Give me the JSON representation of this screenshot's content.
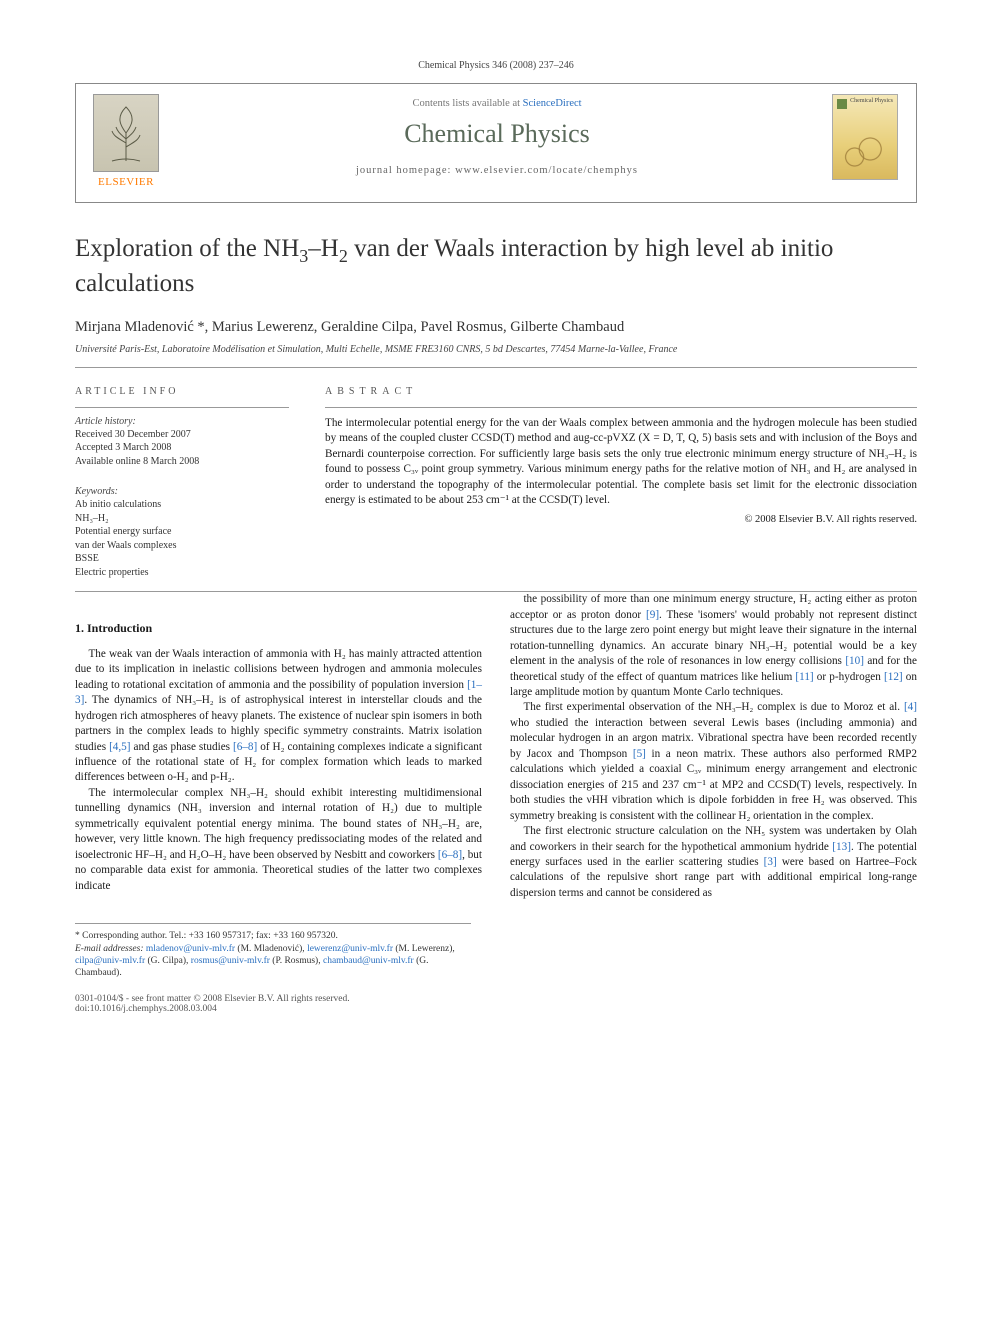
{
  "header_line": "Chemical Physics 346 (2008) 237–246",
  "masthead": {
    "contents_prefix": "Contents lists available at ",
    "contents_link": "ScienceDirect",
    "journal_title": "Chemical Physics",
    "homepage_prefix": "journal homepage: ",
    "homepage_url": "www.elsevier.com/locate/chemphys",
    "publisher": "ELSEVIER",
    "cover_label": "Chemical Physics"
  },
  "article": {
    "title_html": "Exploration of the NH<sub>3</sub>–H<sub>2</sub> van der Waals interaction by high level ab initio calculations",
    "authors": "Mirjana Mladenović *, Marius Lewerenz, Geraldine Cilpa, Pavel Rosmus, Gilberte Chambaud",
    "affiliation": "Université Paris-Est, Laboratoire Modélisation et Simulation, Multi Echelle, MSME FRE3160 CNRS, 5 bd Descartes, 77454 Marne-la-Vallee, France"
  },
  "info": {
    "head_left": "ARTICLE INFO",
    "head_right": "ABSTRACT",
    "history_label": "Article history:",
    "history": [
      "Received 30 December 2007",
      "Accepted 3 March 2008",
      "Available online 8 March 2008"
    ],
    "keywords_label": "Keywords:",
    "keywords": [
      "Ab initio calculations",
      "NH₃–H₂",
      "Potential energy surface",
      "van der Waals complexes",
      "BSSE",
      "Electric properties"
    ],
    "abstract": "The intermolecular potential energy for the van der Waals complex between ammonia and the hydrogen molecule has been studied by means of the coupled cluster CCSD(T) method and aug-cc-pVXZ (X = D, T, Q, 5) basis sets and with inclusion of the Boys and Bernardi counterpoise correction. For sufficiently large basis sets the only true electronic minimum energy structure of NH₃–H₂ is found to possess C₃ᵥ point group symmetry. Various minimum energy paths for the relative motion of NH₃ and H₂ are analysed in order to understand the topography of the intermolecular potential. The complete basis set limit for the electronic dissociation energy is estimated to be about 253 cm⁻¹ at the CCSD(T) level.",
    "copyright": "© 2008 Elsevier B.V. All rights reserved."
  },
  "section1": {
    "title": "1. Introduction",
    "p1": "The weak van der Waals interaction of ammonia with H₂ has mainly attracted attention due to its implication in inelastic collisions between hydrogen and ammonia molecules leading to rotational excitation of ammonia and the possibility of population inversion [1–3]. The dynamics of NH₃–H₂ is of astrophysical interest in interstellar clouds and the hydrogen rich atmospheres of heavy planets. The existence of nuclear spin isomers in both partners in the complex leads to highly specific symmetry constraints. Matrix isolation studies [4,5] and gas phase studies [6–8] of H₂ containing complexes indicate a significant influence of the rotational state of H₂ for complex formation which leads to marked differences between o-H₂ and p-H₂.",
    "p2": "The intermolecular complex NH₃–H₂ should exhibit interesting multidimensional tunnelling dynamics (NH₃ inversion and internal rotation of H₂) due to multiple symmetrically equivalent potential energy minima. The bound states of NH₃–H₂ are, however, very little known. The high frequency predissociating modes of the related and isoelectronic HF–H₂ and H₂O–H₂ have been observed by Nesbitt and coworkers [6–8], but no comparable data exist for ammonia. Theoretical studies of the latter two complexes indicate",
    "p3": "the possibility of more than one minimum energy structure, H₂ acting either as proton acceptor or as proton donor [9]. These 'isomers' would probably not represent distinct structures due to the large zero point energy but might leave their signature in the internal rotation-tunnelling dynamics. An accurate binary NH₃–H₂ potential would be a key element in the analysis of the role of resonances in low energy collisions [10] and for the theoretical study of the effect of quantum matrices like helium [11] or p-hydrogen [12] on large amplitude motion by quantum Monte Carlo techniques.",
    "p4": "The first experimental observation of the NH₃–H₂ complex is due to Moroz et al. [4] who studied the interaction between several Lewis bases (including ammonia) and molecular hydrogen in an argon matrix. Vibrational spectra have been recorded recently by Jacox and Thompson [5] in a neon matrix. These authors also performed RMP2 calculations which yielded a coaxial C₃ᵥ minimum energy arrangement and electronic dissociation energies of 215 and 237 cm⁻¹ at MP2 and CCSD(T) levels, respectively. In both studies the νHH vibration which is dipole forbidden in free H₂ was observed. This symmetry breaking is consistent with the collinear H₂ orientation in the complex.",
    "p5": "The first electronic structure calculation on the NH₅ system was undertaken by Olah and coworkers in their search for the hypothetical ammonium hydride [13]. The potential energy surfaces used in the earlier scattering studies [3] were based on Hartree–Fock calculations of the repulsive short range part with additional empirical long-range dispersion terms and cannot be considered as"
  },
  "footnotes": {
    "corr": "* Corresponding author. Tel.: +33 160 957317; fax: +33 160 957320.",
    "email_label": "E-mail addresses:",
    "emails": "mladenov@univ-mlv.fr (M. Mladenović), lewerenz@univ-mlv.fr (M. Lewerenz), cilpa@univ-mlv.fr (G. Cilpa), rosmus@univ-mlv.fr (P. Rosmus), chambaud@univ-mlv.fr (G. Chambaud)."
  },
  "bottom": {
    "line1": "0301-0104/$ - see front matter © 2008 Elsevier B.V. All rights reserved.",
    "line2": "doi:10.1016/j.chemphys.2008.03.004"
  },
  "colors": {
    "link": "#2a6fbf",
    "publisher": "#ff7a00",
    "journal_title": "#5a6a5a"
  }
}
